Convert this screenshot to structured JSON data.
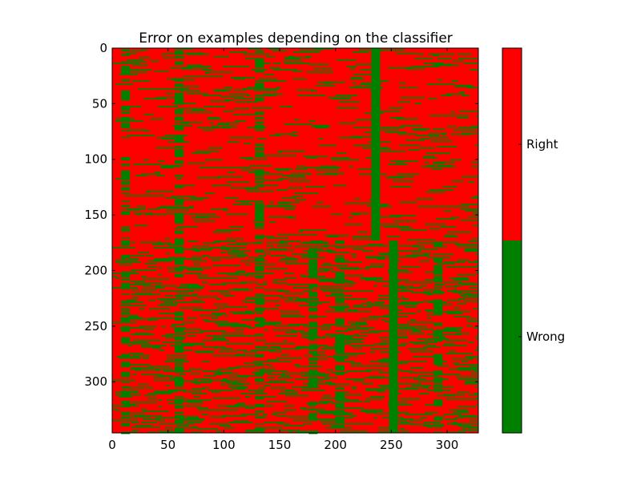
{
  "chart_data": {
    "type": "heatmap",
    "title": "Error on examples depending on the classifier",
    "xlabel": "",
    "ylabel": "",
    "x_ticks": [
      0,
      50,
      100,
      150,
      200,
      250,
      300
    ],
    "y_ticks": [
      0,
      50,
      100,
      150,
      200,
      250,
      300
    ],
    "xlim": [
      0,
      328
    ],
    "ylim": [
      346,
      0
    ],
    "n_rows": 346,
    "n_cols": 328,
    "colors": {
      "Right": "#ff0000",
      "Wrong": "#008000"
    },
    "colorbar": {
      "labels": [
        "Wrong",
        "Right"
      ],
      "boundary_fraction": 0.5
    },
    "background_value": "Right",
    "wrong_blocks": [
      {
        "rows": [
          0,
          173
        ],
        "cols": [
          232,
          240
        ]
      },
      {
        "rows": [
          173,
          346
        ],
        "cols": [
          248,
          256
        ]
      },
      {
        "rows": [
          172,
          346
        ],
        "cols": [
          176,
          184
        ]
      },
      {
        "rows": [
          172,
          346
        ],
        "cols": [
          200,
          208
        ]
      },
      {
        "rows": [
          172,
          346
        ],
        "cols": [
          288,
          296
        ]
      },
      {
        "rows": [
          0,
          346
        ],
        "cols": [
          8,
          16
        ]
      },
      {
        "rows": [
          0,
          346
        ],
        "cols": [
          56,
          64
        ]
      },
      {
        "rows": [
          0,
          346
        ],
        "cols": [
          128,
          136
        ]
      }
    ],
    "wrong_row_density_top": 0.08,
    "wrong_row_density_bottom": 0.16
  }
}
